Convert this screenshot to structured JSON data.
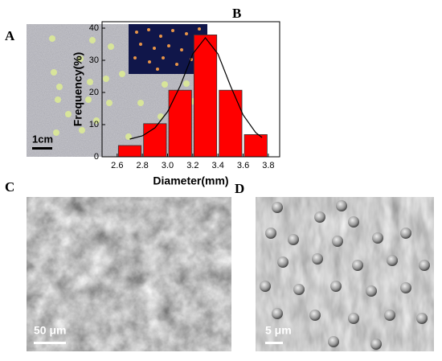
{
  "panel_labels": [
    "A",
    "B",
    "C",
    "D"
  ],
  "scale_bars": [
    "1cm",
    "50 μm",
    "5 μm"
  ],
  "chart_data": {
    "type": "histogram",
    "xlabel": "Diameter(mm)",
    "ylabel": "Frequency(%)",
    "bins": [
      2.6,
      2.8,
      3.0,
      3.2,
      3.4,
      3.6,
      3.8
    ],
    "values": [
      3.5,
      10.3,
      20.7,
      37.9,
      20.7,
      6.9
    ],
    "color": "#ff0000",
    "fit": {
      "color": "#000000",
      "x": [
        2.7,
        2.8,
        2.9,
        3.0,
        3.1,
        3.2,
        3.3,
        3.4,
        3.5,
        3.6,
        3.7,
        3.75
      ],
      "y": [
        5.5,
        6.5,
        9,
        14,
        22,
        32,
        37,
        32,
        22,
        13,
        7.5,
        6
      ]
    },
    "xlim": [
      2.48,
      3.89
    ],
    "ylim": [
      0,
      42
    ],
    "xticks": [
      2.6,
      2.8,
      {
        "value": 3,
        "label": "3.0"
      },
      3.2,
      3.4,
      3.6,
      3.8
    ],
    "yticks": [
      0,
      10,
      20,
      30,
      40
    ]
  }
}
